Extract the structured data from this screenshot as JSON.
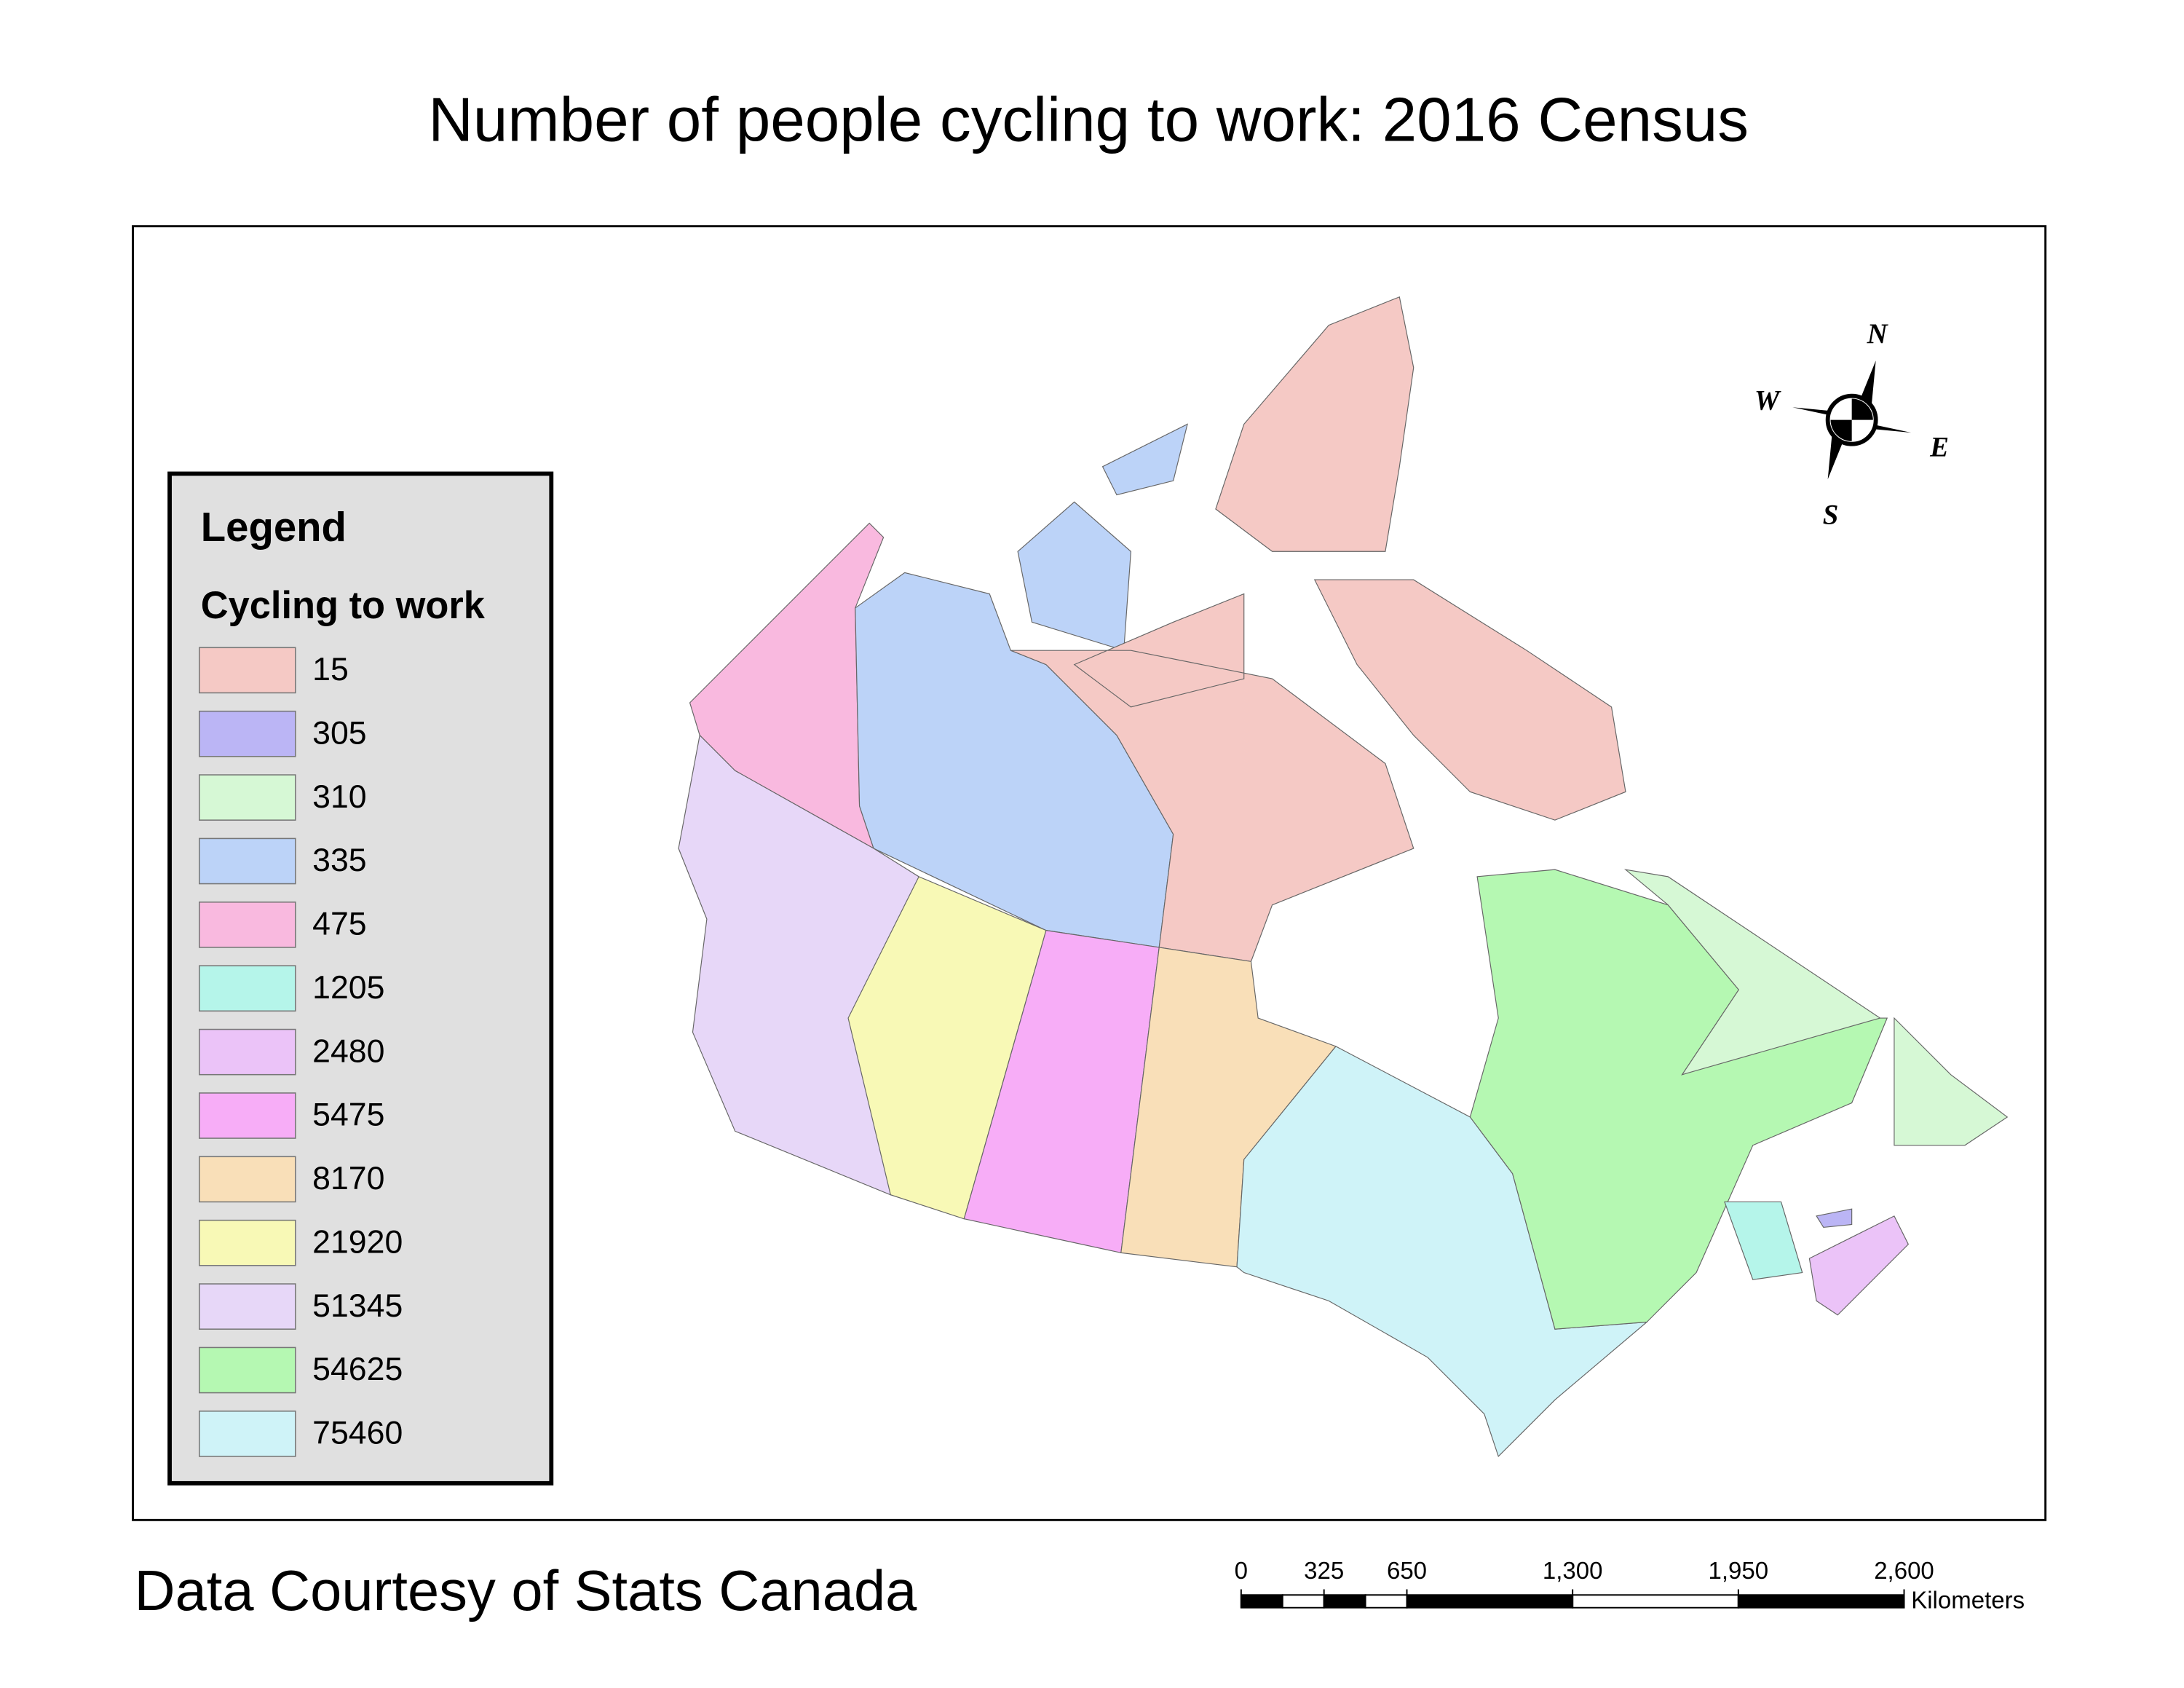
{
  "title": "Number of people cycling to work: 2016 Census",
  "legend": {
    "title": "Legend",
    "subtitle": "Cycling to work",
    "items": [
      {
        "value": 15,
        "color": "#f5c9c5"
      },
      {
        "value": 305,
        "color": "#bbb5f5"
      },
      {
        "value": 310,
        "color": "#d6f8d5"
      },
      {
        "value": 335,
        "color": "#bcd3f8"
      },
      {
        "value": 475,
        "color": "#f9b9df"
      },
      {
        "value": 1205,
        "color": "#b5f5ea"
      },
      {
        "value": 2480,
        "color": "#ebc3f8"
      },
      {
        "value": 5475,
        "color": "#f7adf7"
      },
      {
        "value": 8170,
        "color": "#f9dfb8"
      },
      {
        "value": 21920,
        "color": "#f8f9b6"
      },
      {
        "value": 51345,
        "color": "#e7d7f8"
      },
      {
        "value": 54625,
        "color": "#b5f8b2"
      },
      {
        "value": 75460,
        "color": "#cff3f8"
      }
    ]
  },
  "compass": {
    "n": "N",
    "e": "E",
    "s": "S",
    "w": "W"
  },
  "scale_bar": {
    "ticks": [
      0,
      325,
      650,
      {
        "value": 1300,
        "label": "1,300"
      },
      {
        "value": 1950,
        "label": "1,950"
      },
      {
        "value": 2600,
        "label": "2,600"
      }
    ],
    "unit": "Kilometers"
  },
  "source": "Data Courtesy of Stats Canada"
}
